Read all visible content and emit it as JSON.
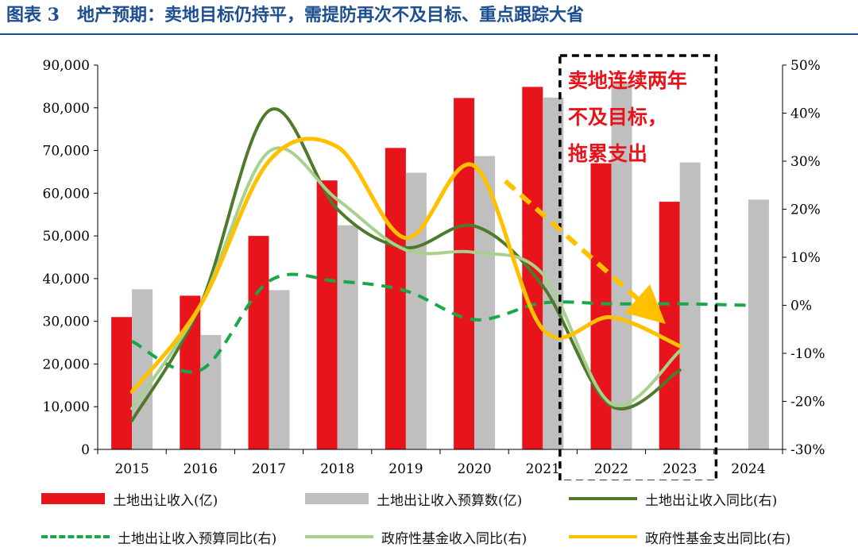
{
  "header": {
    "title": "图表 3　地产预期：卖地目标仍持平，需提防再次不及目标、重点跟踪大省"
  },
  "annotation": {
    "lines": [
      "卖地连续两年",
      "不及目标，",
      "拖累支出"
    ],
    "color": "#e8141b"
  },
  "chart_data": {
    "type": "bar",
    "categories": [
      "2015",
      "2016",
      "2017",
      "2018",
      "2019",
      "2020",
      "2021",
      "2022",
      "2023",
      "2024"
    ],
    "y_left": {
      "min": 0,
      "max": 90000,
      "step": 10000,
      "tick_labels": [
        "0",
        "10,000",
        "20,000",
        "30,000",
        "40,000",
        "50,000",
        "60,000",
        "70,000",
        "80,000",
        "90,000"
      ]
    },
    "y_right": {
      "min": -30,
      "max": 50,
      "step": 10,
      "tick_labels": [
        "-30%",
        "-20%",
        "-10%",
        "0%",
        "10%",
        "20%",
        "30%",
        "40%",
        "50%"
      ]
    },
    "bars": [
      {
        "name": "土地出让收入(亿)",
        "color": "#e8141b",
        "values": [
          31000,
          36000,
          50000,
          63000,
          70600,
          82300,
          84900,
          67000,
          58000,
          null
        ]
      },
      {
        "name": "土地出让收入预算数(亿)",
        "color": "#bfbfbf",
        "values": [
          37500,
          26800,
          37300,
          52500,
          64800,
          68700,
          82400,
          86000,
          67200,
          58500
        ]
      }
    ],
    "lines": [
      {
        "name": "土地出让收入同比(右)",
        "color": "#4f7a2c",
        "style": "solid",
        "values": [
          -24,
          0,
          40.5,
          20,
          12,
          16.5,
          4,
          -21,
          -13.5,
          null
        ]
      },
      {
        "name": "土地出让收入预算同比(右)",
        "color": "#1aa64a",
        "style": "dashed",
        "values": [
          -7.5,
          -13.5,
          5,
          5,
          3,
          -3,
          0.5,
          0.3,
          0.3,
          0
        ]
      },
      {
        "name": "政府性基金收入同比(右)",
        "color": "#a9d18e",
        "style": "solid",
        "values": [
          -21.5,
          0,
          32,
          22,
          11.5,
          11,
          6.5,
          -20.5,
          -9.5,
          null
        ]
      },
      {
        "name": "政府性基金支出同比(右)",
        "color": "#ffc000",
        "style": "solid",
        "values": [
          -18,
          0,
          30,
          33,
          14,
          29,
          -5,
          -2.5,
          -8.5,
          null
        ]
      }
    ]
  }
}
